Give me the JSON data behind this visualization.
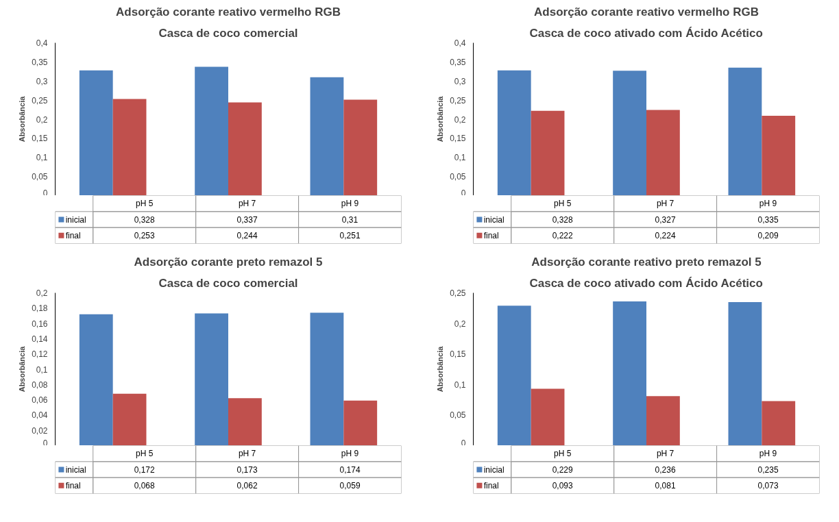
{
  "chart_data": [
    {
      "type": "bar",
      "title": "Adsorção corante reativo vermelho RGB",
      "subtitle": "Casca de coco comercial",
      "ylabel": "Absorbância",
      "categories": [
        "pH 5",
        "pH 7",
        "pH 9"
      ],
      "legend": "bottom",
      "ylim": [
        0,
        0.4
      ],
      "yticks": [
        0,
        {
          "value": 0.05,
          "label": "0,05"
        },
        {
          "value": 0.1,
          "label": "0,1"
        },
        {
          "value": 0.15,
          "label": "0,15"
        },
        {
          "value": 0.2,
          "label": "0,2"
        },
        {
          "value": 0.25,
          "label": "0,25"
        },
        {
          "value": 0.3,
          "label": "0,3"
        },
        {
          "value": 0.35,
          "label": "0,35"
        },
        {
          "value": 0.4,
          "label": "0,4"
        }
      ],
      "series": [
        {
          "name": "inicial",
          "color": "#4f81bd",
          "values": [
            0.328,
            0.337,
            0.31
          ],
          "value_labels": [
            "0,328",
            "0,337",
            "0,31"
          ]
        },
        {
          "name": "final",
          "color": "#c0504d",
          "values": [
            0.253,
            0.244,
            0.251
          ],
          "value_labels": [
            "0,253",
            "0,244",
            "0,251"
          ]
        }
      ]
    },
    {
      "type": "bar",
      "title": "Adsorção corante reativo vermelho RGB",
      "subtitle": "Casca de coco ativado com Ácido Acético",
      "ylabel": "Absorbância",
      "categories": [
        "pH 5",
        "pH 7",
        "pH 9"
      ],
      "legend": "bottom",
      "ylim": [
        0,
        0.4
      ],
      "yticks": [
        0,
        {
          "value": 0.05,
          "label": "0,05"
        },
        {
          "value": 0.1,
          "label": "0,1"
        },
        {
          "value": 0.15,
          "label": "0,15"
        },
        {
          "value": 0.2,
          "label": "0,2"
        },
        {
          "value": 0.25,
          "label": "0,25"
        },
        {
          "value": 0.3,
          "label": "0,3"
        },
        {
          "value": 0.35,
          "label": "0,35"
        },
        {
          "value": 0.4,
          "label": "0,4"
        }
      ],
      "series": [
        {
          "name": "inicial",
          "color": "#4f81bd",
          "values": [
            0.328,
            0.327,
            0.335
          ],
          "value_labels": [
            "0,328",
            "0,327",
            "0,335"
          ]
        },
        {
          "name": "final",
          "color": "#c0504d",
          "values": [
            0.222,
            0.224,
            0.209
          ],
          "value_labels": [
            "0,222",
            "0,224",
            "0,209"
          ]
        }
      ]
    },
    {
      "type": "bar",
      "title": "Adsorção corante preto remazol 5",
      "subtitle": "Casca de coco comercial",
      "ylabel": "Absorbância",
      "categories": [
        "pH 5",
        "pH 7",
        "pH 9"
      ],
      "legend": "bottom",
      "ylim": [
        0,
        0.2
      ],
      "yticks": [
        0,
        {
          "value": 0.02,
          "label": "0,02"
        },
        {
          "value": 0.04,
          "label": "0,04"
        },
        {
          "value": 0.06,
          "label": "0,06"
        },
        {
          "value": 0.08,
          "label": "0,08"
        },
        {
          "value": 0.1,
          "label": "0,1"
        },
        {
          "value": 0.12,
          "label": "0,12"
        },
        {
          "value": 0.14,
          "label": "0,14"
        },
        {
          "value": 0.16,
          "label": "0,16"
        },
        {
          "value": 0.18,
          "label": "0,18"
        },
        {
          "value": 0.2,
          "label": "0,2"
        }
      ],
      "series": [
        {
          "name": "inicial",
          "color": "#4f81bd",
          "values": [
            0.172,
            0.173,
            0.174
          ],
          "value_labels": [
            "0,172",
            "0,173",
            "0,174"
          ]
        },
        {
          "name": "final",
          "color": "#c0504d",
          "values": [
            0.068,
            0.062,
            0.059
          ],
          "value_labels": [
            "0,068",
            "0,062",
            "0,059"
          ]
        }
      ]
    },
    {
      "type": "bar",
      "title": "Adsorção corante reativo preto remazol 5",
      "subtitle": "Casca de coco ativado com Ácido Acético",
      "ylabel": "Absorbância",
      "categories": [
        "pH 5",
        "pH 7",
        "pH 9"
      ],
      "legend": "bottom",
      "ylim": [
        0,
        0.25
      ],
      "yticks": [
        0,
        {
          "value": 0.05,
          "label": "0,05"
        },
        {
          "value": 0.1,
          "label": "0,1"
        },
        {
          "value": 0.15,
          "label": "0,15"
        },
        {
          "value": 0.2,
          "label": "0,2"
        },
        {
          "value": 0.25,
          "label": "0,25"
        }
      ],
      "series": [
        {
          "name": "inicial",
          "color": "#4f81bd",
          "values": [
            0.229,
            0.236,
            0.235
          ],
          "value_labels": [
            "0,229",
            "0,236",
            "0,235"
          ]
        },
        {
          "name": "final",
          "color": "#c0504d",
          "values": [
            0.093,
            0.081,
            0.073
          ],
          "value_labels": [
            "0,093",
            "0,081",
            "0,073"
          ]
        }
      ]
    }
  ]
}
